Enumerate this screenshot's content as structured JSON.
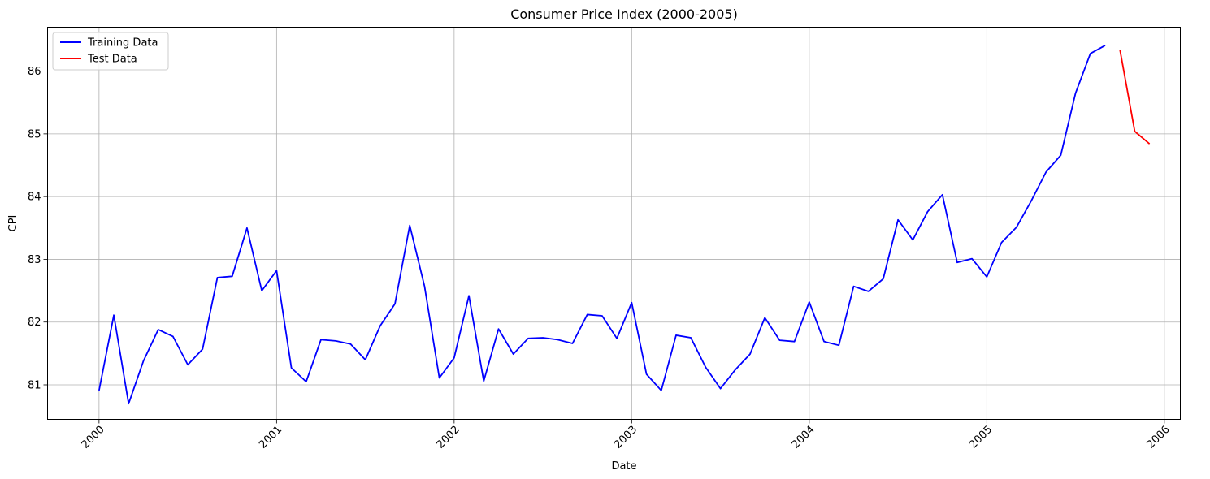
{
  "chart_data": {
    "type": "line",
    "title": "Consumer Price Index (2000-2005)",
    "xlabel": "Date",
    "ylabel": "CPI",
    "xlim": [
      -0.29,
      6.09
    ],
    "ylim": [
      80.45,
      86.7
    ],
    "x_ticks": [
      0,
      1,
      2,
      3,
      4,
      5,
      6
    ],
    "x_tick_labels": [
      "2000",
      "2001",
      "2002",
      "2003",
      "2004",
      "2005",
      "2006"
    ],
    "y_ticks": [
      81,
      82,
      83,
      84,
      85,
      86
    ],
    "y_tick_labels": [
      "81",
      "82",
      "83",
      "84",
      "85",
      "86"
    ],
    "grid": true,
    "legend_position": "top-left",
    "series": [
      {
        "name": "Training Data",
        "color": "#0000ff",
        "x_start_month": 0,
        "values": [
          80.91,
          82.11,
          80.7,
          81.38,
          81.88,
          81.77,
          81.32,
          81.57,
          82.71,
          82.73,
          83.5,
          82.5,
          82.82,
          81.27,
          81.05,
          81.72,
          81.7,
          81.65,
          81.4,
          81.94,
          82.29,
          83.54,
          82.57,
          81.11,
          81.43,
          82.42,
          81.06,
          81.89,
          81.49,
          81.74,
          81.75,
          81.72,
          81.66,
          82.12,
          82.1,
          81.74,
          82.31,
          81.17,
          80.91,
          81.79,
          81.75,
          81.28,
          80.94,
          81.24,
          81.49,
          82.07,
          81.71,
          81.69,
          82.32,
          81.69,
          81.63,
          82.57,
          82.49,
          82.69,
          83.63,
          83.31,
          83.76,
          84.03,
          82.95,
          83.01,
          82.72,
          83.27,
          83.51,
          83.93,
          84.39,
          84.66,
          85.65,
          86.28,
          86.41
        ]
      },
      {
        "name": "Test Data",
        "color": "#ff0000",
        "x_start_month": 69,
        "values": [
          86.34,
          85.04,
          84.84
        ]
      }
    ]
  }
}
